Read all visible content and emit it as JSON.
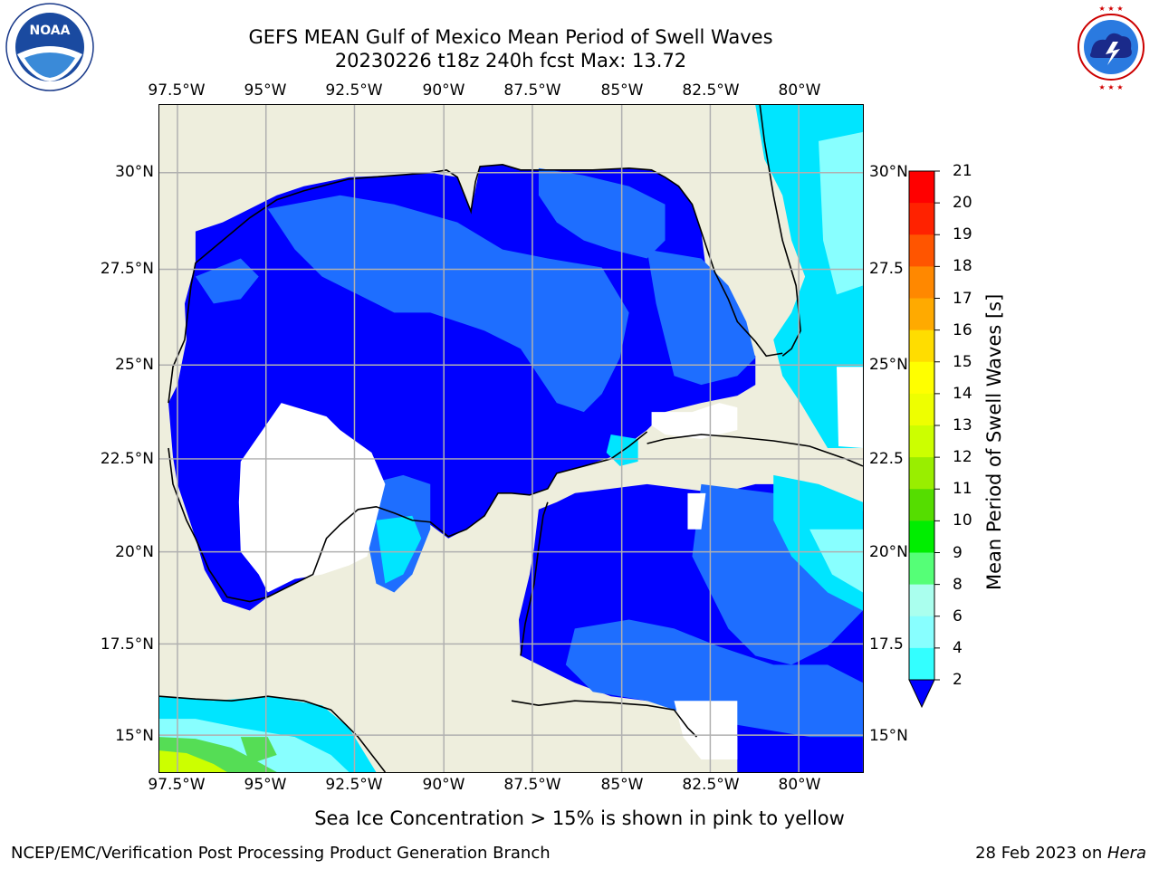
{
  "title": {
    "line1": "GEFS MEAN Gulf of Mexico Mean Period of Swell Waves",
    "line2": "20230226 t18z 240h fcst   Max: 13.72"
  },
  "logos": {
    "noaa": {
      "text": "NOAA",
      "ring_text": "NATIONAL OCEANIC AND ATMOSPHERIC ADMINISTRATION · U.S. DEPARTMENT OF COMMERCE"
    },
    "nws": {
      "ring_text": "NATIONAL WEATHER SERVICE"
    }
  },
  "map": {
    "lon_ticks": [
      "97.5°W",
      "95°W",
      "92.5°W",
      "90°W",
      "87.5°W",
      "85°W",
      "82.5°W",
      "80°W"
    ],
    "lat_ticks_left": [
      "30°N",
      "27.5°N",
      "25°N",
      "22.5°N",
      "20°N",
      "17.5°N",
      "15°N"
    ],
    "lat_ticks_right": [
      "30°N",
      "27.5",
      "25°N",
      "22.5",
      "20°N",
      "17.5",
      "15°N"
    ],
    "colors": {
      "land": "#eeeedd",
      "deep_blue": "#0000ff",
      "mid_blue": "#1e6eff",
      "light_blue": "#00e5ff",
      "pale_cyan": "#44ffff",
      "green": "#55dd55",
      "yellow_green": "#ccff00",
      "grid": "#b0b0b0"
    }
  },
  "colorbar": {
    "label": "Mean Period of Swell Waves [s]",
    "ticks": [
      "2",
      "4",
      "6",
      "8",
      "9",
      "10",
      "11",
      "12",
      "13",
      "14",
      "15",
      "16",
      "17",
      "18",
      "19",
      "20",
      "21"
    ],
    "colors": [
      "#0050ff",
      "#00e5ff",
      "#33ffff",
      "#88ffff",
      "#aaffee",
      "#55ff77",
      "#00ee00",
      "#55dd00",
      "#99ee00",
      "#ccff00",
      "#eeff00",
      "#ffff00",
      "#ffdd00",
      "#ffaa00",
      "#ff8800",
      "#ff5500",
      "#ff2200",
      "#ff0000"
    ],
    "extend_color": "#0000ff"
  },
  "footer": {
    "note": "Sea Ice Concentration > 15% is shown in pink to yellow",
    "left": "NCEP/EMC/Verification Post Processing Product Generation Branch",
    "right_prefix": "28 Feb 2023 on ",
    "right_host": "Hera"
  }
}
